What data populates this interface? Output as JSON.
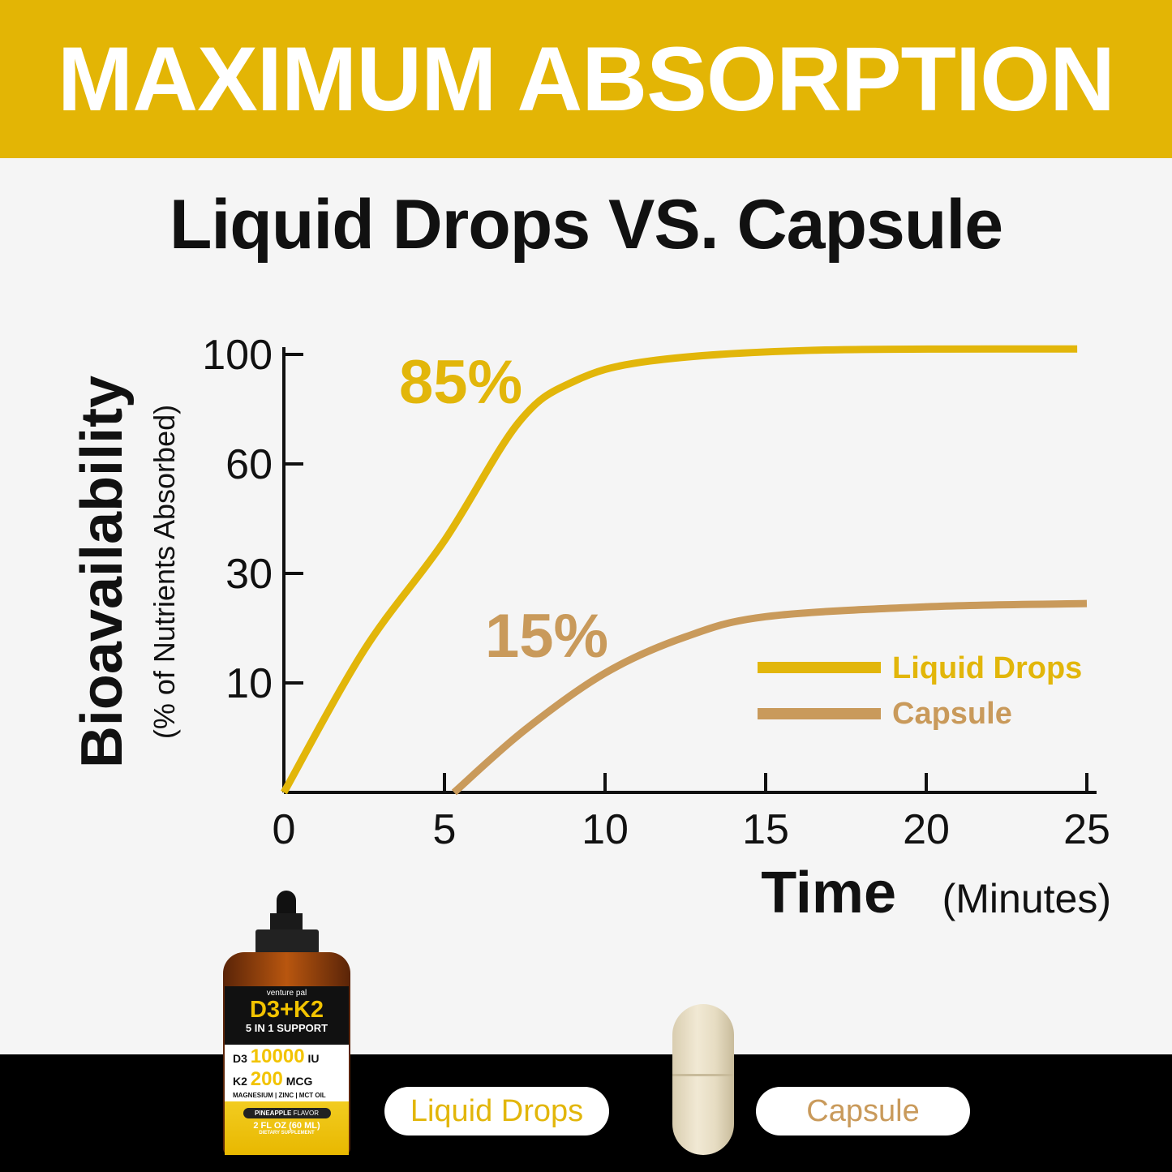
{
  "banner": {
    "title": "MAXIMUM ABSORPTION",
    "color": "#e3b505"
  },
  "subtitle": "Liquid Drops VS. Capsule",
  "chart_data": {
    "type": "line",
    "ylabel": "Bioavailability",
    "ylabel_sub": "(% of Nutrients Absorbed)",
    "xlabel": "Time",
    "xlabel_unit": "(Minutes)",
    "x_ticks": [
      "0",
      "5",
      "10",
      "15",
      "20",
      "25"
    ],
    "y_ticks": [
      "10",
      "30",
      "60",
      "100"
    ],
    "y_tick_values": [
      0,
      10,
      30,
      60,
      100
    ],
    "xlim": [
      0,
      25
    ],
    "ylim": [
      0,
      100
    ],
    "grid": false,
    "legend_placement": "right",
    "series": [
      {
        "name": "Liquid Drops",
        "color": "#e2b60a",
        "annotation": "85%",
        "points": [
          [
            0,
            0
          ],
          [
            2.5,
            16
          ],
          [
            5,
            39
          ],
          [
            7.3,
            75
          ],
          [
            9,
            90
          ],
          [
            11.4,
            97.6
          ],
          [
            16.4,
            101.5
          ],
          [
            24.7,
            102
          ]
        ]
      },
      {
        "name": "Capsule",
        "color": "#c99a5b",
        "annotation": "15%",
        "points": [
          [
            5.3,
            0
          ],
          [
            7.5,
            5.7
          ],
          [
            10,
            11.8
          ],
          [
            12.5,
            18.4
          ],
          [
            15,
            22.1
          ],
          [
            20,
            23.9
          ],
          [
            25,
            24.5
          ]
        ]
      }
    ]
  },
  "product": {
    "brand": "venture pal",
    "name": "D3+K2",
    "support": "5 IN 1 SUPPORT",
    "d3_label": "D3",
    "d3_value": "10000",
    "d3_unit": "IU",
    "k2_label": "K2",
    "k2_value": "200",
    "k2_unit": "MCG",
    "extras": "MAGNESIUM | ZINC | MCT OIL",
    "flavor_a": "PINEAPPLE",
    "flavor_b": "FLAVOR",
    "size": "2 FL OZ (60 ML)",
    "type": "DIETARY SUPPLEMENT"
  },
  "footer": {
    "liquid_label": "Liquid Drops",
    "capsule_label": "Capsule"
  }
}
